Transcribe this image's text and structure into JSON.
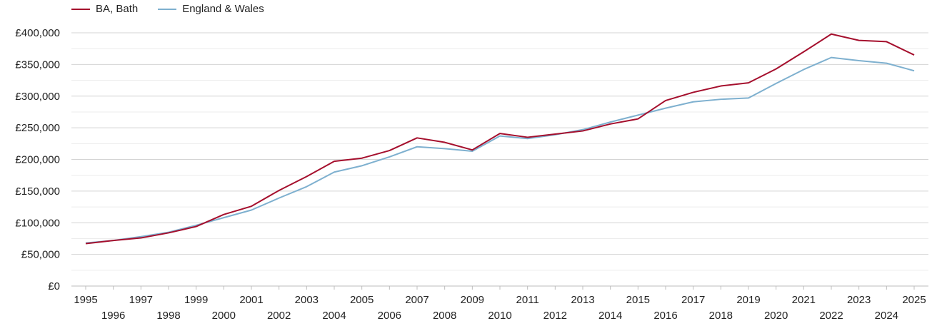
{
  "legend": [
    {
      "label": "BA, Bath",
      "color": "#a50f2d"
    },
    {
      "label": "England & Wales",
      "color": "#7eb0cf"
    }
  ],
  "chart_data": {
    "type": "line",
    "title": "",
    "xlabel": "",
    "ylabel": "",
    "x": [
      1995,
      1996,
      1997,
      1998,
      1999,
      2000,
      2001,
      2002,
      2003,
      2004,
      2005,
      2006,
      2007,
      2008,
      2009,
      2010,
      2011,
      2012,
      2013,
      2014,
      2015,
      2016,
      2017,
      2018,
      2019,
      2020,
      2021,
      2022,
      2023,
      2024,
      2025
    ],
    "xlim": [
      1995,
      2025
    ],
    "ylim": [
      0,
      400000
    ],
    "y_ticks": [
      0,
      50000,
      100000,
      150000,
      200000,
      250000,
      300000,
      350000,
      400000
    ],
    "y_tick_labels": [
      "£0",
      "£50,000",
      "£100,000",
      "£150,000",
      "£200,000",
      "£250,000",
      "£300,000",
      "£350,000",
      "£400,000"
    ],
    "grid": true,
    "legend_position": "top-left",
    "series": [
      {
        "name": "BA, Bath",
        "color": "#a50f2d",
        "values": [
          67000,
          72000,
          76000,
          84000,
          94000,
          113000,
          126000,
          151000,
          173000,
          197000,
          202000,
          214000,
          234000,
          227000,
          215000,
          241000,
          235000,
          240000,
          245000,
          256000,
          264000,
          293000,
          306000,
          316000,
          321000,
          343000,
          370000,
          398000,
          388000,
          386000,
          365000
        ]
      },
      {
        "name": "England & Wales",
        "color": "#7eb0cf",
        "values": [
          68000,
          72000,
          78000,
          85000,
          96000,
          108000,
          120000,
          139000,
          157000,
          180000,
          190000,
          204000,
          220000,
          217000,
          213000,
          237000,
          233000,
          239000,
          247000,
          259000,
          270000,
          281000,
          291000,
          295000,
          297000,
          320000,
          342000,
          361000,
          356000,
          352000,
          340000
        ]
      }
    ]
  }
}
